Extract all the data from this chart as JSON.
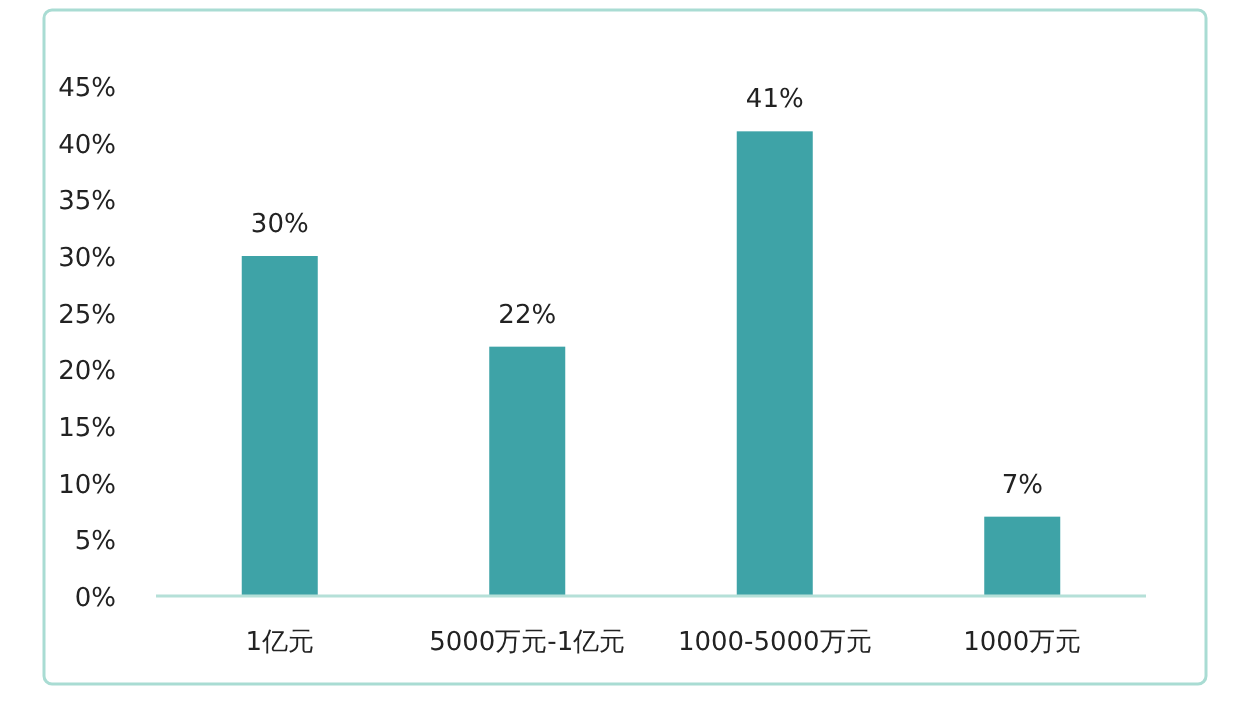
{
  "chart_data": {
    "type": "bar",
    "categories": [
      "1亿元",
      "5000万元-1亿元",
      "1000-5000万元",
      "1000万元"
    ],
    "values": [
      30,
      22,
      41,
      7
    ],
    "value_labels": [
      "30%",
      "22%",
      "41%",
      "7%"
    ],
    "color": "#3ea3a7",
    "ylim": [
      0,
      45
    ],
    "yticks": [
      {
        "value": 0,
        "label": "0%"
      },
      {
        "value": 5,
        "label": "5%"
      },
      {
        "value": 10,
        "label": "10%"
      },
      {
        "value": 15,
        "label": "15%"
      },
      {
        "value": 20,
        "label": "20%"
      },
      {
        "value": 25,
        "label": "25%"
      },
      {
        "value": 30,
        "label": "30%"
      },
      {
        "value": 35,
        "label": "35%"
      },
      {
        "value": 40,
        "label": "40%"
      },
      {
        "value": 45,
        "label": "45%"
      }
    ],
    "grid": false
  }
}
